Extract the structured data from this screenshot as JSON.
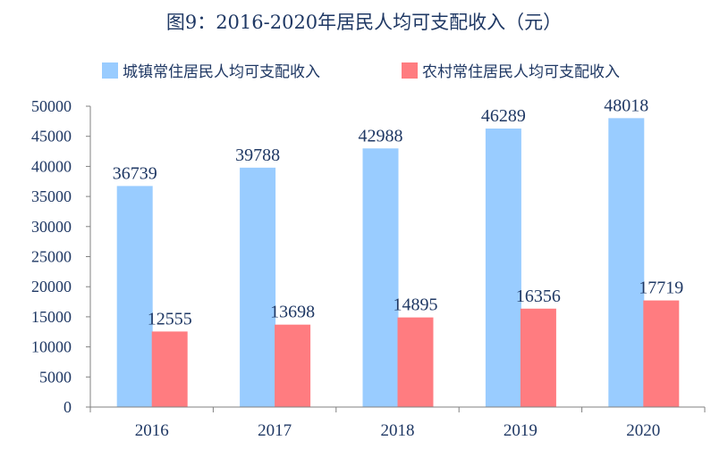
{
  "chart_data": {
    "type": "bar",
    "title": "图9：2016-2020年居民人均可支配收入（元）",
    "categories": [
      "2016",
      "2017",
      "2018",
      "2019",
      "2020"
    ],
    "series": [
      {
        "name": "城镇常住居民人均可支配收入",
        "color": "#99ccff",
        "values": [
          36739,
          39788,
          42988,
          46289,
          48018
        ]
      },
      {
        "name": "农村常住居民人均可支配收入",
        "color": "#ff7c80",
        "values": [
          12555,
          13698,
          14895,
          16356,
          17719
        ]
      }
    ],
    "ylim": [
      0,
      50000
    ],
    "yticks": [
      0,
      5000,
      10000,
      15000,
      20000,
      25000,
      30000,
      35000,
      40000,
      45000,
      50000
    ],
    "legend": "top",
    "grid": false,
    "axis_color": "#808080",
    "text_color": "#1f3864"
  }
}
